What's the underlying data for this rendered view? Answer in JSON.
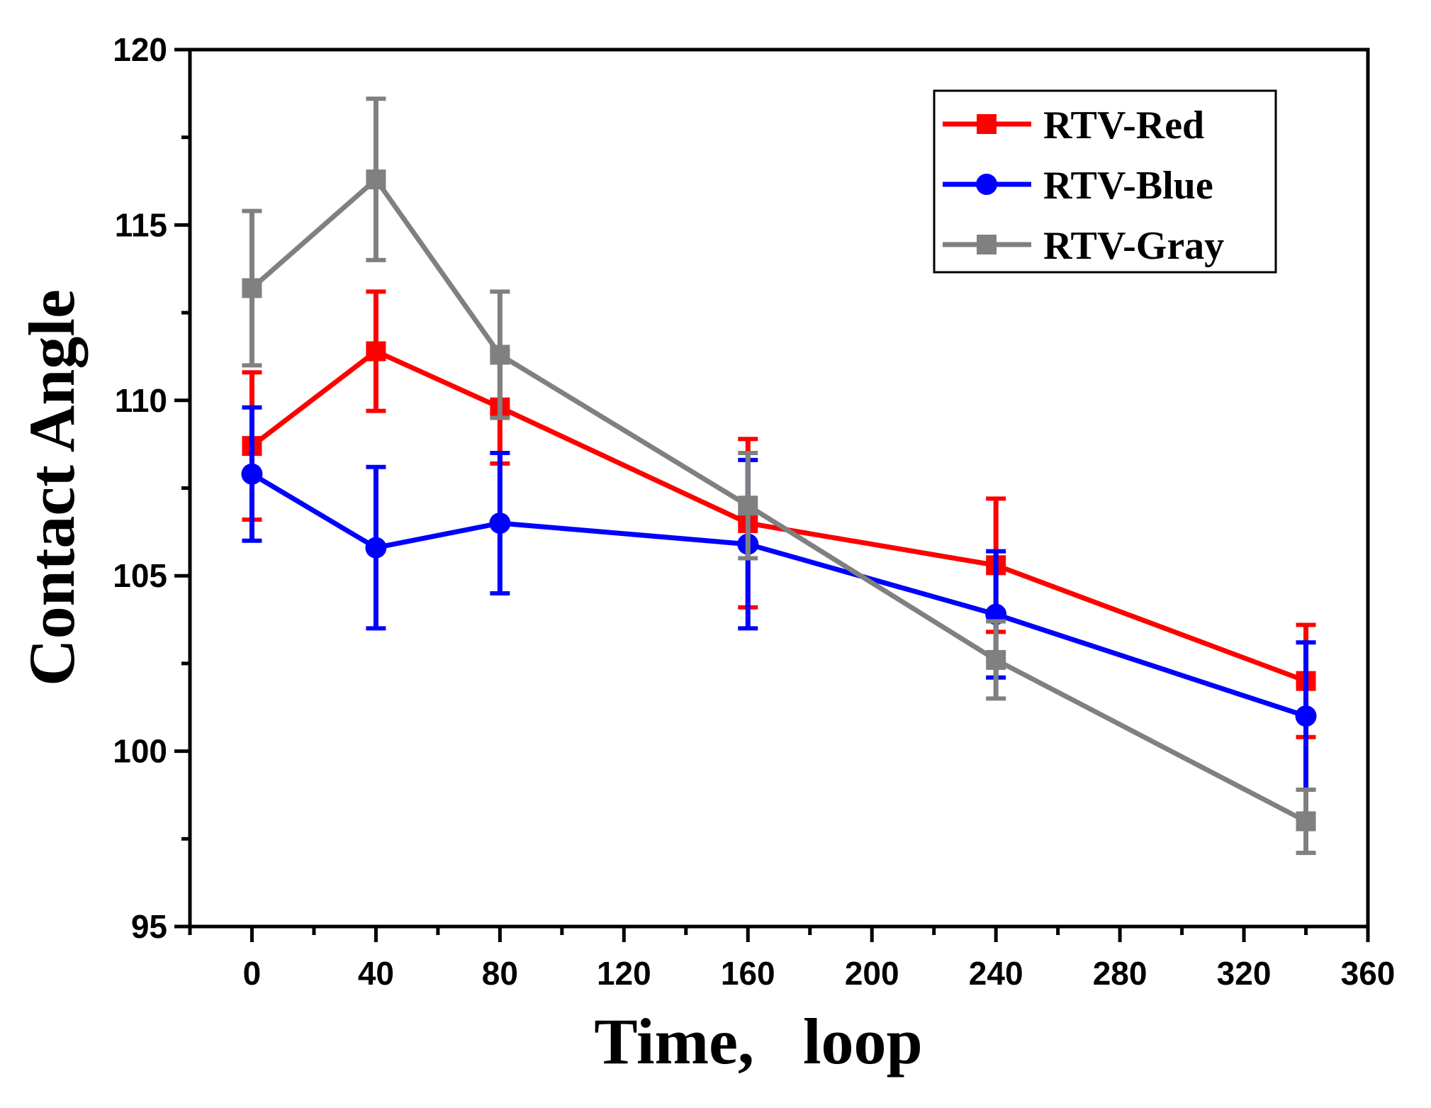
{
  "chart_data": {
    "type": "line",
    "xlabel": "Time,   loop",
    "ylabel": "Contact Angle",
    "xlim": [
      -20,
      360
    ],
    "ylim": [
      95,
      120
    ],
    "xticks": [
      0,
      40,
      80,
      120,
      160,
      200,
      240,
      280,
      320,
      360
    ],
    "yticks": [
      95,
      100,
      105,
      110,
      115,
      120
    ],
    "legend_position": "top-right",
    "grid": false,
    "series": [
      {
        "name": "RTV-Red",
        "color": "#ff0000",
        "marker": "square",
        "x": [
          0,
          40,
          80,
          160,
          240,
          340
        ],
        "y": [
          108.7,
          111.4,
          109.8,
          106.5,
          105.3,
          102.0
        ],
        "err_low": [
          2.1,
          1.7,
          1.6,
          2.4,
          1.9,
          1.6
        ],
        "err_high": [
          2.1,
          1.7,
          1.6,
          2.4,
          1.9,
          1.6
        ]
      },
      {
        "name": "RTV-Blue",
        "color": "#0000ff",
        "marker": "circle",
        "x": [
          0,
          40,
          80,
          160,
          240,
          340
        ],
        "y": [
          107.9,
          105.8,
          106.5,
          105.9,
          103.9,
          101.0
        ],
        "err_low": [
          1.9,
          2.3,
          2.0,
          2.4,
          1.8,
          2.1
        ],
        "err_high": [
          1.9,
          2.3,
          2.0,
          2.4,
          1.8,
          2.1
        ]
      },
      {
        "name": "RTV-Gray",
        "color": "#808080",
        "marker": "square",
        "x": [
          0,
          40,
          80,
          160,
          240,
          340
        ],
        "y": [
          113.2,
          116.3,
          111.3,
          107.0,
          102.6,
          98.0
        ],
        "err_low": [
          2.2,
          2.3,
          1.8,
          1.5,
          1.1,
          0.9
        ],
        "err_high": [
          2.2,
          2.3,
          1.8,
          1.5,
          1.1,
          0.9
        ]
      }
    ]
  }
}
